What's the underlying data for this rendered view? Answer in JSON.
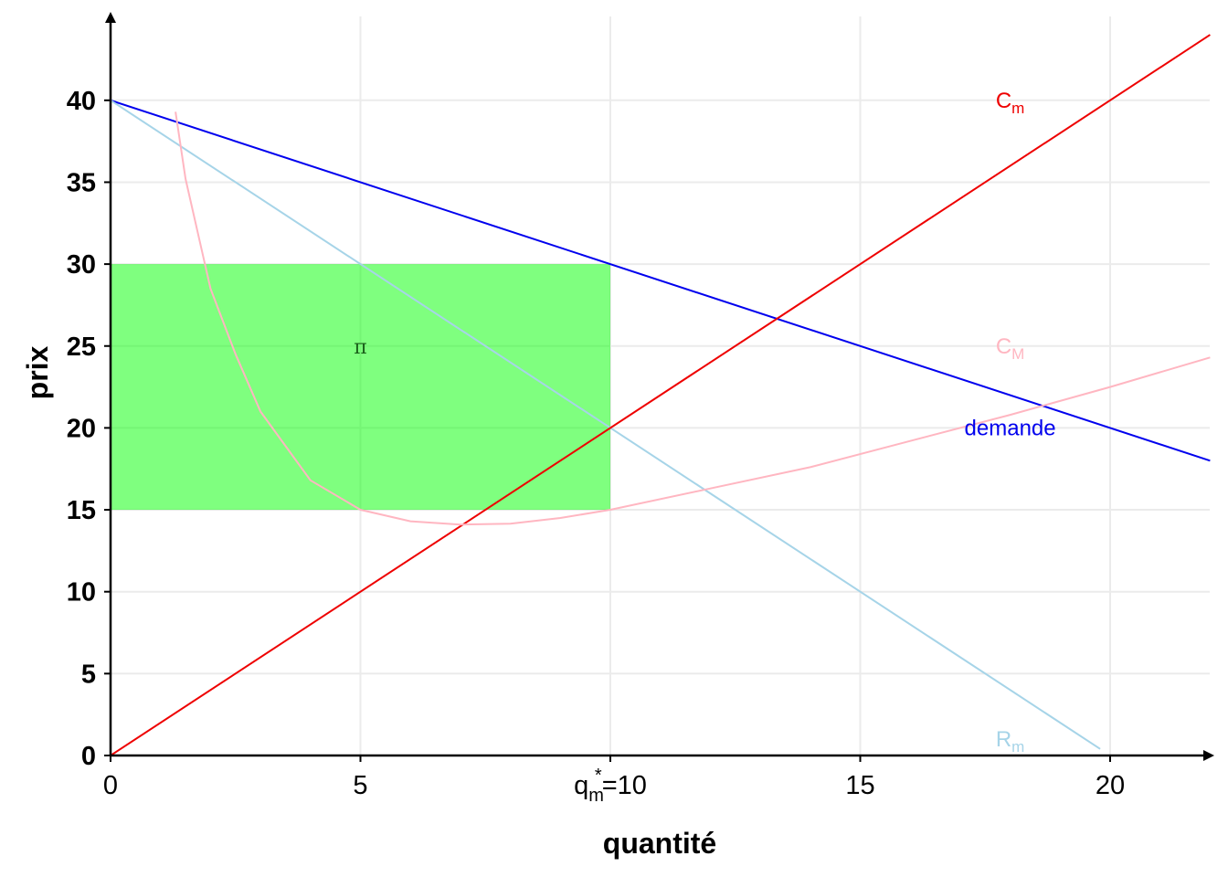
{
  "chart_data": {
    "type": "line",
    "xlabel": "quantité",
    "ylabel": "prix",
    "xlim": [
      0,
      22
    ],
    "ylim": [
      0,
      44
    ],
    "xticks": [
      {
        "value": 0,
        "label": "0"
      },
      {
        "value": 5,
        "label": "5"
      },
      {
        "value": 10,
        "label": "=10",
        "prefix_main": "q",
        "prefix_sub": "m",
        "prefix_sup": "*"
      },
      {
        "value": 15,
        "label": "15"
      },
      {
        "value": 20,
        "label": "20"
      }
    ],
    "yticks": [
      0,
      5,
      10,
      15,
      20,
      25,
      30,
      35,
      40
    ],
    "grid": true,
    "series": [
      {
        "name": "demande",
        "color": "#0000ee",
        "x": [
          0,
          22
        ],
        "y": [
          40,
          18
        ]
      },
      {
        "name": "R",
        "subscript": "m",
        "color": "#a6d4e8",
        "x": [
          0,
          19.8
        ],
        "y": [
          40,
          0.4
        ]
      },
      {
        "name": "C",
        "subscript": "m",
        "color": "#ee0000",
        "x": [
          0,
          22
        ],
        "y": [
          0,
          44
        ]
      },
      {
        "name": "C",
        "subscript": "M",
        "color": "#ffb6c1",
        "x": [
          1.3,
          1.5,
          2,
          2.5,
          3,
          4,
          5,
          6,
          7,
          8,
          9,
          10,
          12,
          14,
          16,
          18,
          20,
          22
        ],
        "y": [
          39.3,
          35.2,
          28.5,
          24.5,
          21.0,
          16.8,
          15.0,
          14.3,
          14.1,
          14.15,
          14.5,
          15.0,
          16.3,
          17.6,
          19.2,
          20.8,
          22.5,
          24.3
        ]
      }
    ],
    "labels": [
      {
        "main": "C",
        "sub": "m",
        "color": "#ee0000",
        "x": 18,
        "y": 40
      },
      {
        "main": "C",
        "sub": "M",
        "color": "#ffb6c1",
        "x": 18,
        "y": 25
      },
      {
        "main": "demande",
        "sub": "",
        "color": "#0000ee",
        "x": 18,
        "y": 20
      },
      {
        "main": "R",
        "sub": "m",
        "color": "#a6d4e8",
        "x": 18,
        "y": 1
      }
    ],
    "profit_area": {
      "label": "π",
      "color": "#00ff00",
      "x0": 0,
      "x1": 10,
      "y0": 15,
      "y1": 30,
      "label_x": 5,
      "label_y": 25
    }
  }
}
